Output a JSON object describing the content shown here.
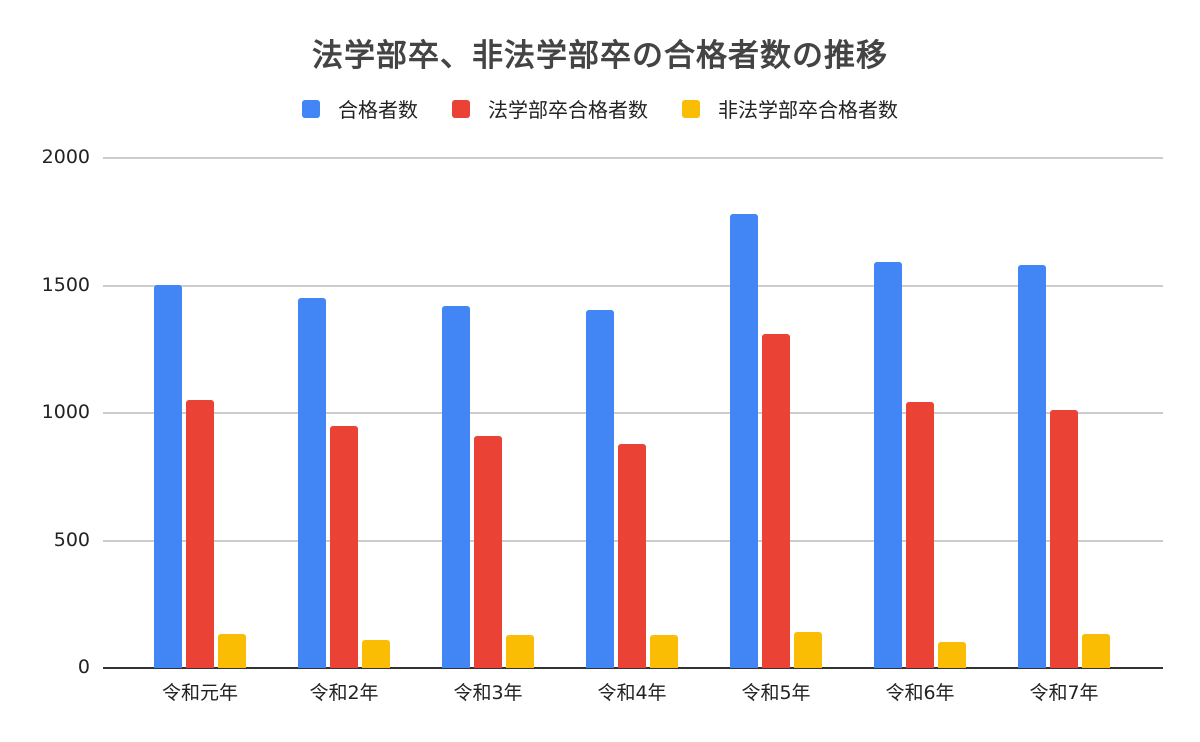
{
  "chart_data": {
    "type": "bar",
    "title": "法学部卒、非法学部卒の合格者数の推移",
    "xlabel": "",
    "ylabel": "",
    "ylim": [
      0,
      2000
    ],
    "yticks": [
      0,
      500,
      1000,
      1500,
      2000
    ],
    "grid": true,
    "legend_position": "top",
    "categories": [
      "令和元年",
      "令和2年",
      "令和3年",
      "令和4年",
      "令和5年",
      "令和6年",
      "令和7年"
    ],
    "series": [
      {
        "name": "合格者数",
        "color": "#4285F4",
        "values": [
          1502,
          1450,
          1421,
          1403,
          1781,
          1592,
          1581
        ]
      },
      {
        "name": "法学部卒合格者数",
        "color": "#EA4335",
        "values": [
          1051,
          950,
          910,
          878,
          1310,
          1044,
          1012
        ]
      },
      {
        "name": "非法学部卒合格者数",
        "color": "#FBBC04",
        "values": [
          134,
          111,
          128,
          128,
          142,
          103,
          134
        ]
      }
    ]
  },
  "ytick_labels": [
    "0",
    "500",
    "1000",
    "1500",
    "2000"
  ]
}
